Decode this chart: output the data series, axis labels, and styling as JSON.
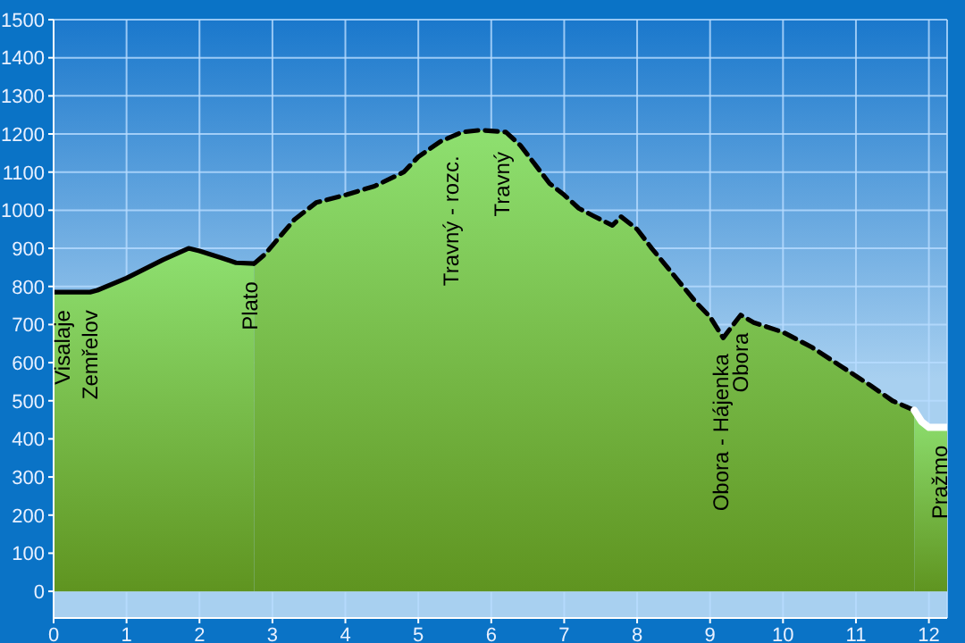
{
  "chart_data": {
    "type": "area",
    "xlim": [
      0,
      12.25
    ],
    "xticks": [
      0,
      1,
      2,
      3,
      4,
      5,
      6,
      7,
      8,
      9,
      10,
      11,
      12
    ],
    "ylim": [
      -70,
      1500
    ],
    "yticks": [
      0,
      100,
      200,
      300,
      400,
      500,
      600,
      700,
      800,
      900,
      1000,
      1100,
      1200,
      1300,
      1400,
      1500
    ],
    "grid": true,
    "series": [
      {
        "color": "#000000",
        "line_style": "solid",
        "x": [
          0,
          0.5,
          0.6,
          1.0,
          1.5,
          1.85,
          2.0,
          2.3,
          2.5,
          2.75
        ],
        "values": [
          785,
          785,
          790,
          822,
          870,
          900,
          893,
          875,
          862,
          860
        ]
      },
      {
        "color": "#000000",
        "line_style": "dashed",
        "x": [
          2.75,
          2.9,
          3.1,
          3.3,
          3.6,
          4.0,
          4.4,
          4.8,
          5.0,
          5.3,
          5.6,
          5.85,
          6.2,
          6.4,
          6.6,
          6.8,
          7.0,
          7.2,
          7.4,
          7.66,
          7.78,
          8.0,
          8.2,
          8.5,
          8.8,
          9.0,
          9.18,
          9.42,
          9.6,
          10.0,
          10.4,
          10.8,
          11.2,
          11.5,
          11.8
        ],
        "values": [
          860,
          885,
          930,
          975,
          1020,
          1040,
          1063,
          1100,
          1140,
          1180,
          1205,
          1210,
          1205,
          1170,
          1120,
          1070,
          1040,
          1005,
          985,
          960,
          983,
          950,
          900,
          830,
          760,
          720,
          665,
          725,
          705,
          680,
          640,
          590,
          540,
          500,
          475
        ]
      },
      {
        "color": "#ffffff",
        "line_style": "solid",
        "x": [
          11.8,
          11.9,
          12.0,
          12.25
        ],
        "values": [
          475,
          445,
          430,
          430
        ]
      }
    ],
    "annotations": [
      {
        "text": "Visalaje",
        "x": 0.12,
        "y": 785
      },
      {
        "text": "Zemřelov",
        "x": 0.5,
        "y": 785
      },
      {
        "text": "Plato",
        "x": 2.7,
        "y": 860
      },
      {
        "text": "Travný - rozc.",
        "x": 5.45,
        "y": 1190
      },
      {
        "text": "Travný",
        "x": 6.15,
        "y": 1200
      },
      {
        "text": "Obora - Hájenka",
        "x": 9.15,
        "y": 670
      },
      {
        "text": "Obora",
        "x": 9.42,
        "y": 725
      },
      {
        "text": "Pražmo",
        "x": 12.15,
        "y": 430
      }
    ]
  }
}
